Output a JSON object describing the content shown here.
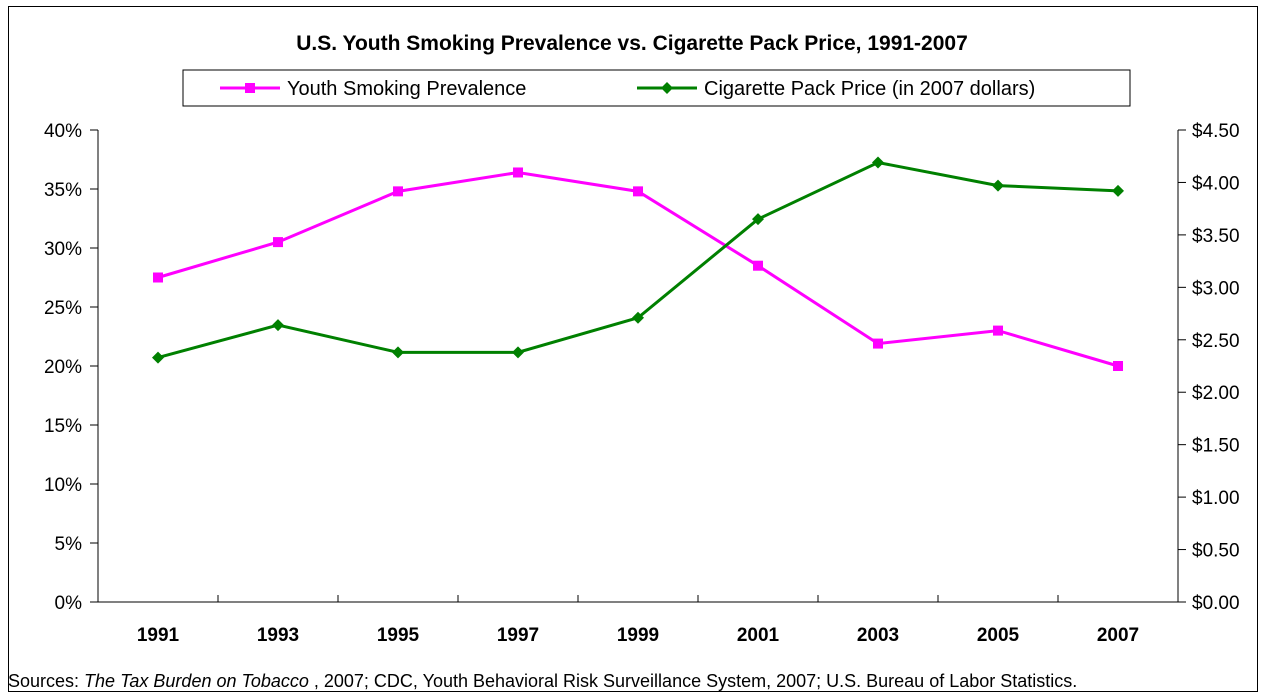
{
  "chart_data": {
    "type": "line",
    "title": "U.S. Youth Smoking Prevalence vs. Cigarette Pack Price, 1991-2007",
    "categories": [
      "1991",
      "1993",
      "1995",
      "1997",
      "1999",
      "2001",
      "2003",
      "2005",
      "2007"
    ],
    "series": [
      {
        "name": "Youth Smoking Prevalence",
        "axis": "left",
        "color": "#ff00ff",
        "marker": "square",
        "values": [
          27.5,
          30.5,
          34.8,
          36.4,
          34.8,
          28.5,
          21.9,
          23.0,
          20.0
        ]
      },
      {
        "name": "Cigarette Pack Price (in 2007 dollars)",
        "axis": "right",
        "color": "#008000",
        "marker": "diamond",
        "values": [
          2.33,
          2.64,
          2.38,
          2.38,
          2.71,
          3.65,
          4.19,
          3.97,
          3.92
        ]
      }
    ],
    "y_left": {
      "min": 0,
      "max": 40,
      "step": 5,
      "ticks": [
        "0%",
        "5%",
        "10%",
        "15%",
        "20%",
        "25%",
        "30%",
        "35%",
        "40%"
      ]
    },
    "y_right": {
      "min": 0,
      "max": 4.5,
      "step": 0.5,
      "ticks": [
        "$0.00",
        "$0.50",
        "$1.00",
        "$1.50",
        "$2.00",
        "$2.50",
        "$3.00",
        "$3.50",
        "$4.00",
        "$4.50"
      ]
    },
    "grid": false,
    "legend_position": "top"
  },
  "sources": {
    "prefix": "Sources: ",
    "italic": "The Tax Burden on Tobacco",
    "rest": " , 2007; CDC, Youth Behavioral Risk Surveillance System, 2007; U.S. Bureau of Labor Statistics."
  }
}
